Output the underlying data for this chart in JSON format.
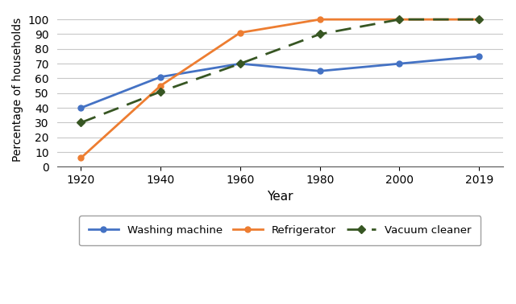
{
  "years": [
    "1920",
    "1940",
    "1960",
    "1980",
    "2000",
    "2019"
  ],
  "washing_machine": [
    40,
    61,
    70,
    65,
    70,
    75
  ],
  "refrigerator": [
    6,
    55,
    91,
    100,
    100,
    100
  ],
  "vacuum_cleaner": [
    30,
    51,
    70,
    90,
    100,
    100
  ],
  "washing_machine_color": "#4472C4",
  "refrigerator_color": "#ED7D31",
  "vacuum_cleaner_color": "#375623",
  "xlabel": "Year",
  "ylabel": "Percentage of households",
  "ylim": [
    0,
    105
  ],
  "yticks": [
    0,
    10,
    20,
    30,
    40,
    50,
    60,
    70,
    80,
    90,
    100
  ],
  "background_color": "#ffffff",
  "grid_color": "#c8c8c8",
  "legend_labels": [
    "Washing machine",
    "Refrigerator",
    "Vacuum cleaner"
  ]
}
